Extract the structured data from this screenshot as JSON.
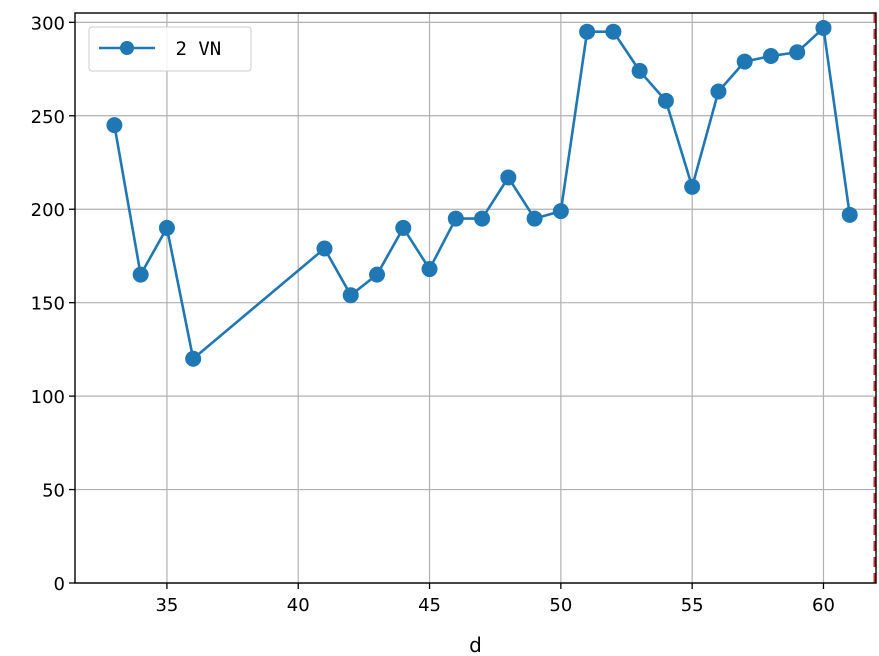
{
  "chart_data": {
    "type": "line",
    "title": "",
    "xlabel": "d",
    "ylabel": "",
    "xlim": [
      31.5,
      62.0
    ],
    "ylim": [
      0,
      305
    ],
    "xticks": [
      35,
      40,
      45,
      50,
      55,
      60
    ],
    "yticks": [
      0,
      50,
      100,
      150,
      200,
      250,
      300
    ],
    "grid": true,
    "legend_position": "top-left",
    "series": [
      {
        "name": "2 VN",
        "color": "#1f77b4",
        "marker": "circle",
        "x": [
          33,
          34,
          35,
          36,
          41,
          42,
          43,
          44,
          45,
          46,
          47,
          48,
          49,
          50,
          51,
          52,
          53,
          54,
          55,
          56,
          57,
          58,
          59,
          60,
          61
        ],
        "y": [
          245,
          165,
          190,
          120,
          179,
          154,
          165,
          190,
          168,
          195,
          195,
          217,
          195,
          199,
          295,
          295,
          274,
          258,
          212,
          263,
          279,
          282,
          284,
          297,
          197
        ]
      }
    ],
    "reference_lines": [
      {
        "orientation": "vertical",
        "x": 62,
        "color": "#d62728",
        "style": "dashed"
      }
    ]
  }
}
